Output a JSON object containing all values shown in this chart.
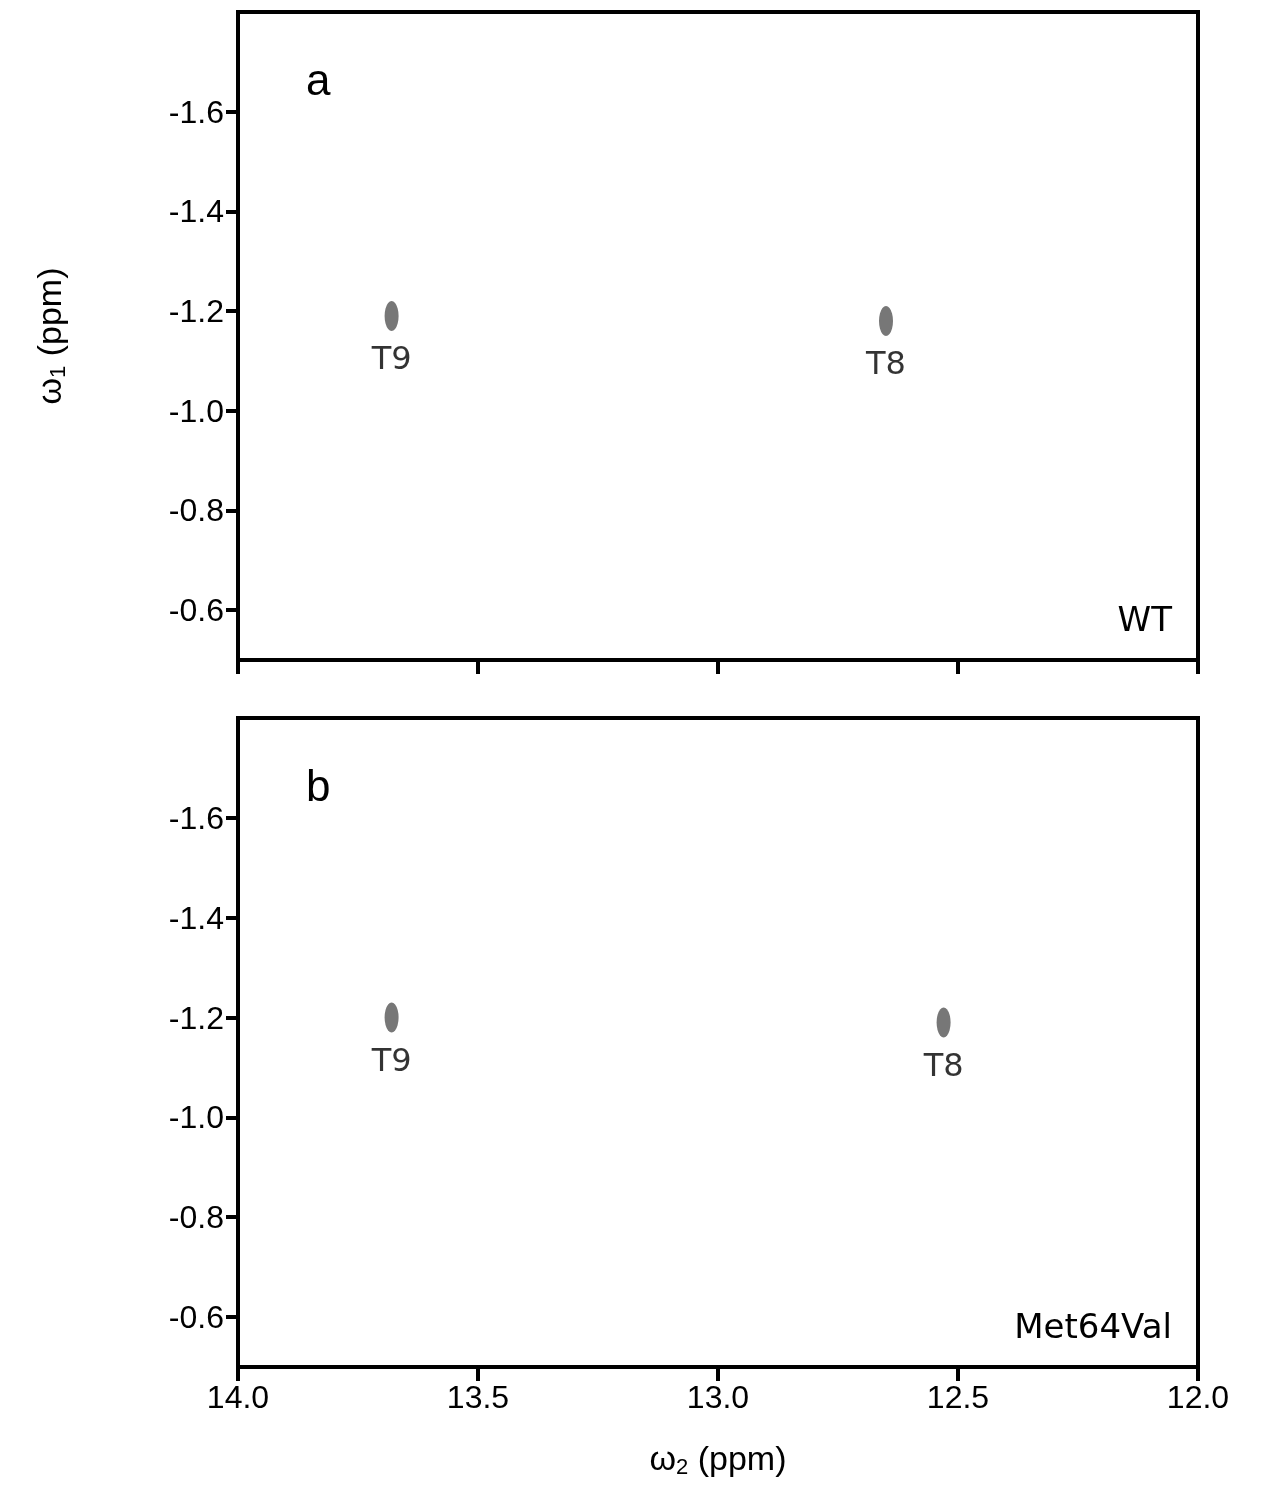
{
  "chart_data": [
    {
      "type": "scatter",
      "ylabel": "ω$_{1}$ (ppm)",
      "xlim": [
        14.0,
        12.0
      ],
      "xticks": [
        {
          "value": 14,
          "label": null
        },
        {
          "value": 13.5,
          "label": null
        },
        {
          "value": 13,
          "label": null
        },
        {
          "value": 12.5,
          "label": null
        },
        {
          "value": 12,
          "label": null
        }
      ],
      "ylim": [
        -0.5,
        -1.8
      ],
      "yticks": [
        -1.6,
        -1.4,
        -1.2,
        {
          "value": -1,
          "label": "-1.0"
        },
        -0.8,
        -0.6
      ],
      "tick_labels": "y",
      "grid": false,
      "marker": "circle",
      "series": [
        {
          "color": "#555555",
          "x": [
            13.68,
            12.65
          ],
          "values": [
            -1.19,
            -1.18
          ]
        }
      ],
      "annotations": [
        "a",
        "WT",
        {
          "text": "T9",
          "x": 13.68,
          "y": -1.19
        },
        {
          "text": "T8",
          "x": 12.65,
          "y": -1.18
        }
      ]
    },
    {
      "type": "scatter",
      "xlabel": "ω$_{2}$ (ppm)",
      "xlim": [
        14.0,
        12.0
      ],
      "xticks": [
        {
          "value": 14,
          "label": "14.0"
        },
        13.5,
        {
          "value": 13,
          "label": "13.0"
        },
        12.5,
        {
          "value": 12,
          "label": "12.0"
        }
      ],
      "ylim": [
        -0.5,
        -1.8
      ],
      "yticks": [
        -1.6,
        -1.4,
        -1.2,
        {
          "value": -1,
          "label": "-1.0"
        },
        -0.8,
        -0.6
      ],
      "grid": false,
      "marker": "circle",
      "series": [
        {
          "color": "#555555",
          "x": [
            13.68,
            12.53
          ],
          "values": [
            -1.2,
            -1.19
          ]
        }
      ],
      "annotations": [
        "b",
        "Met64Val",
        {
          "text": "T9",
          "x": 13.68,
          "y": -1.2
        },
        {
          "text": "T8",
          "x": 12.53,
          "y": -1.19
        }
      ]
    }
  ]
}
